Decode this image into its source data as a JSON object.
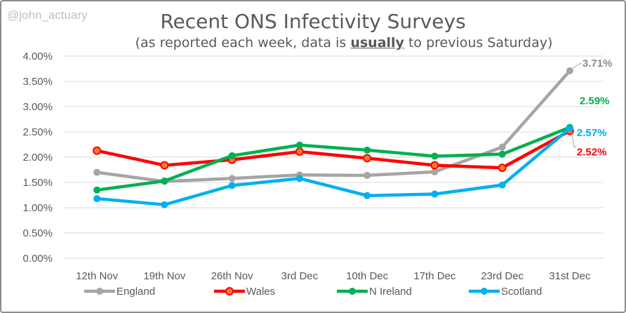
{
  "watermark": "@john_actuary",
  "chart_data": {
    "type": "line",
    "title": "Recent ONS Infectivity Surveys",
    "subtitle_pre": "(as reported each week, data is ",
    "subtitle_emph": "usually",
    "subtitle_post": " to previous Saturday)",
    "categories": [
      "12th Nov",
      "19th Nov",
      "26th Nov",
      "3rd Dec",
      "10th Dec",
      "17th Dec",
      "23rd Dec",
      "31st Dec"
    ],
    "y_ticks": [
      "0.00%",
      "0.50%",
      "1.00%",
      "1.50%",
      "2.00%",
      "2.50%",
      "3.00%",
      "3.50%",
      "4.00%"
    ],
    "ylim": [
      0,
      4
    ],
    "grid": "horizontal",
    "legend_position": "bottom",
    "series": [
      {
        "name": "England",
        "color": "#a5a5a5",
        "values": [
          1.7,
          1.52,
          1.58,
          1.65,
          1.64,
          1.71,
          2.2,
          3.71
        ],
        "end_label": "3.71%"
      },
      {
        "name": "Wales",
        "color": "#ff0000",
        "marker_fill": "#ed7d31",
        "values": [
          2.13,
          1.84,
          1.95,
          2.11,
          1.98,
          1.84,
          1.79,
          2.52
        ],
        "end_label": "2.52%"
      },
      {
        "name": "N Ireland",
        "color": "#00b050",
        "values": [
          1.35,
          1.53,
          2.03,
          2.24,
          2.14,
          2.02,
          2.06,
          2.59
        ],
        "end_label": "2.59%"
      },
      {
        "name": "Scotland",
        "color": "#00b0f0",
        "values": [
          1.18,
          1.06,
          1.44,
          1.58,
          1.24,
          1.27,
          1.45,
          2.57
        ],
        "end_label": "2.57%"
      }
    ]
  }
}
